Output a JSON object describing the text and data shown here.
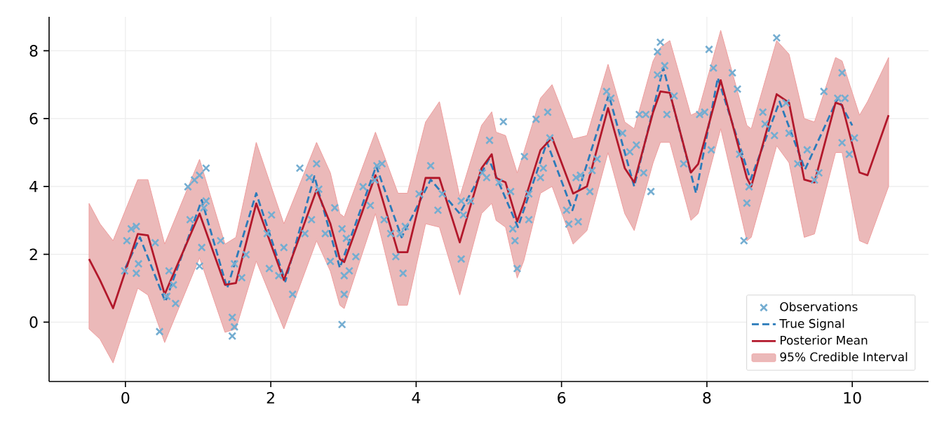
{
  "chart_data": {
    "type": "line",
    "xlim": [
      -1.05,
      11.05
    ],
    "ylim": [
      -1.75,
      9.0
    ],
    "xticks": [
      0,
      2,
      4,
      6,
      8,
      10
    ],
    "yticks": [
      0,
      2,
      4,
      6,
      8
    ],
    "grid": true,
    "legend": "bottom right",
    "series": [
      {
        "name": "Observations",
        "type": "scatter",
        "marker": "cross",
        "color": "#74add1",
        "x": [
          0.08,
          0.15,
          0.02,
          0.18,
          -0.01,
          0.15,
          0.47,
          0.41,
          0.6,
          0.66,
          0.57,
          0.69,
          0.86,
          0.95,
          1.11,
          1.02,
          1.11,
          0.89,
          1.02,
          1.05,
          1.08,
          1.31,
          1.47,
          1.5,
          1.47,
          1.5,
          1.6,
          1.66,
          2.01,
          1.98,
          1.95,
          2.11,
          2.3,
          2.18,
          2.4,
          2.63,
          2.53,
          2.66,
          2.56,
          2.47,
          2.75,
          2.88,
          2.82,
          2.98,
          3.04,
          3.01,
          2.98,
          3.01,
          3.17,
          3.08,
          3.27,
          3.37,
          3.46,
          3.53,
          3.43,
          3.56,
          3.65,
          3.72,
          3.82,
          3.78,
          3.85,
          4.04,
          4.2,
          4.3,
          4.36,
          4.62,
          4.65,
          4.62,
          4.75,
          4.91,
          5.01,
          4.97,
          5.14,
          5.2,
          5.3,
          5.36,
          5.39,
          5.33,
          5.49,
          5.55,
          5.55,
          5.65,
          5.81,
          5.75,
          5.84,
          5.71,
          6.07,
          6.1,
          6.23,
          6.2,
          6.26,
          6.42,
          6.39,
          6.49,
          6.62,
          6.68,
          6.84,
          6.94,
          7.07,
          7.03,
          7.23,
          7.13,
          7.36,
          7.32,
          7.42,
          7.32,
          7.16,
          7.45,
          7.55,
          7.68,
          7.9,
          7.97,
          8.06,
          8.03,
          8.09,
          8.35,
          8.42,
          8.45,
          8.55,
          8.51,
          8.58,
          8.77,
          8.8,
          8.96,
          8.93,
          9.09,
          9.13,
          9.25,
          9.38,
          9.48,
          9.54,
          9.61,
          9.8,
          9.86,
          9.9,
          9.96,
          10.03,
          9.86
        ],
        "values": [
          2.75,
          2.82,
          2.4,
          1.72,
          1.51,
          1.44,
          -0.28,
          2.34,
          1.51,
          1.1,
          0.76,
          0.55,
          3.99,
          4.19,
          4.54,
          4.33,
          3.57,
          3.02,
          1.65,
          2.2,
          3.37,
          2.4,
          0.14,
          -0.14,
          -0.41,
          1.72,
          1.31,
          1.99,
          3.16,
          1.58,
          2.61,
          1.37,
          0.82,
          2.2,
          4.54,
          4.67,
          4.26,
          3.92,
          3.02,
          2.61,
          2.61,
          3.37,
          1.79,
          2.75,
          2.47,
          0.82,
          -0.07,
          1.37,
          1.93,
          1.51,
          3.99,
          3.44,
          4.61,
          4.67,
          4.19,
          3.02,
          2.61,
          1.93,
          1.44,
          2.61,
          2.82,
          3.78,
          4.61,
          3.3,
          3.78,
          3.57,
          3.16,
          1.86,
          3.57,
          4.4,
          5.36,
          4.26,
          4.12,
          5.91,
          3.85,
          2.4,
          1.58,
          2.75,
          4.88,
          3.02,
          3.78,
          5.98,
          6.19,
          4.54,
          5.43,
          4.26,
          3.3,
          2.89,
          2.96,
          4.26,
          4.33,
          4.47,
          3.85,
          4.81,
          6.8,
          6.6,
          5.57,
          5.02,
          6.12,
          5.22,
          3.85,
          4.4,
          8.25,
          7.97,
          7.56,
          7.29,
          6.12,
          6.12,
          6.67,
          4.67,
          6.12,
          6.19,
          5.08,
          8.04,
          7.49,
          7.35,
          6.87,
          4.95,
          3.51,
          2.4,
          3.99,
          6.19,
          5.84,
          8.38,
          5.5,
          6.46,
          5.57,
          4.67,
          5.08,
          4.19,
          4.4,
          6.8,
          6.6,
          7.35,
          6.6,
          4.95,
          5.43,
          5.29
        ]
      },
      {
        "name": "True Signal",
        "line_style": "dashed",
        "color": "#2b7bba",
        "x": [
          0,
          0.2,
          0.55,
          1.05,
          1.4,
          1.8,
          2.2,
          2.6,
          2.95,
          3.45,
          3.8,
          4.2,
          4.6,
          5.0,
          5.4,
          5.8,
          6.15,
          6.65,
          7.0,
          7.4,
          7.85,
          8.15,
          8.6,
          9.0,
          9.35,
          9.8,
          10.0
        ],
        "values": [
          1.6,
          2.5,
          0.6,
          3.6,
          1.0,
          3.8,
          1.2,
          4.3,
          1.6,
          4.6,
          2.5,
          4.2,
          3.2,
          4.8,
          2.8,
          5.3,
          3.3,
          6.7,
          4.0,
          7.5,
          3.8,
          7.2,
          4.2,
          6.5,
          4.5,
          6.6,
          5.8
        ]
      },
      {
        "name": "Posterior Mean",
        "line_style": "solid",
        "color": "#b2182b",
        "x": [
          -0.5,
          -0.35,
          -0.17,
          0.17,
          0.31,
          0.54,
          1.02,
          1.37,
          1.52,
          1.8,
          2.18,
          2.63,
          2.82,
          2.95,
          3.01,
          3.44,
          3.75,
          3.88,
          4.13,
          4.32,
          4.6,
          4.9,
          5.04,
          5.1,
          5.23,
          5.39,
          5.48,
          5.71,
          5.87,
          6.16,
          6.35,
          6.64,
          6.87,
          7.0,
          7.26,
          7.36,
          7.49,
          7.78,
          7.88,
          8.19,
          8.55,
          8.61,
          8.96,
          9.13,
          9.34,
          9.48,
          9.77,
          9.86,
          10.1,
          10.21,
          10.5
        ],
        "values": [
          1.86,
          1.24,
          0.41,
          2.6,
          2.56,
          0.82,
          3.2,
          1.1,
          1.15,
          3.5,
          1.24,
          3.9,
          2.9,
          1.86,
          1.77,
          4.33,
          2.06,
          2.06,
          4.25,
          4.25,
          2.35,
          4.54,
          4.95,
          4.25,
          4.12,
          2.97,
          3.5,
          5.07,
          5.44,
          3.79,
          4.0,
          6.31,
          4.54,
          4.12,
          6.19,
          6.8,
          6.76,
          4.41,
          4.66,
          7.13,
          4.25,
          4.0,
          6.72,
          6.47,
          4.2,
          4.12,
          6.47,
          6.4,
          4.41,
          4.33,
          6.1
        ],
        "lower": [
          -0.2,
          -0.5,
          -1.2,
          1.0,
          0.8,
          -0.6,
          1.9,
          -0.3,
          -0.2,
          1.8,
          -0.2,
          2.4,
          1.5,
          0.5,
          0.4,
          3.2,
          0.5,
          0.5,
          2.9,
          2.8,
          0.8,
          3.2,
          3.5,
          3.0,
          2.8,
          1.3,
          1.8,
          3.8,
          4.0,
          2.3,
          2.7,
          5.0,
          3.2,
          2.7,
          4.7,
          5.3,
          5.3,
          3.0,
          3.2,
          5.7,
          2.4,
          2.5,
          5.2,
          4.7,
          2.5,
          2.6,
          5.0,
          5.0,
          2.4,
          2.3,
          4.0
        ],
        "upper": [
          3.5,
          2.9,
          2.4,
          4.2,
          4.2,
          2.3,
          4.8,
          2.3,
          2.5,
          5.3,
          2.9,
          5.3,
          4.4,
          3.2,
          3.1,
          5.6,
          3.8,
          3.8,
          5.9,
          6.5,
          3.7,
          5.8,
          6.2,
          5.6,
          5.5,
          4.4,
          5.0,
          6.6,
          7.0,
          5.4,
          5.5,
          7.6,
          5.9,
          5.7,
          7.7,
          8.1,
          8.3,
          6.1,
          6.2,
          8.6,
          5.8,
          5.7,
          8.3,
          7.9,
          6.0,
          5.9,
          7.8,
          7.7,
          6.1,
          6.5,
          7.8
        ]
      },
      {
        "name": "95% Credible Interval",
        "type": "area",
        "color": "#ebb9b9"
      }
    ]
  }
}
